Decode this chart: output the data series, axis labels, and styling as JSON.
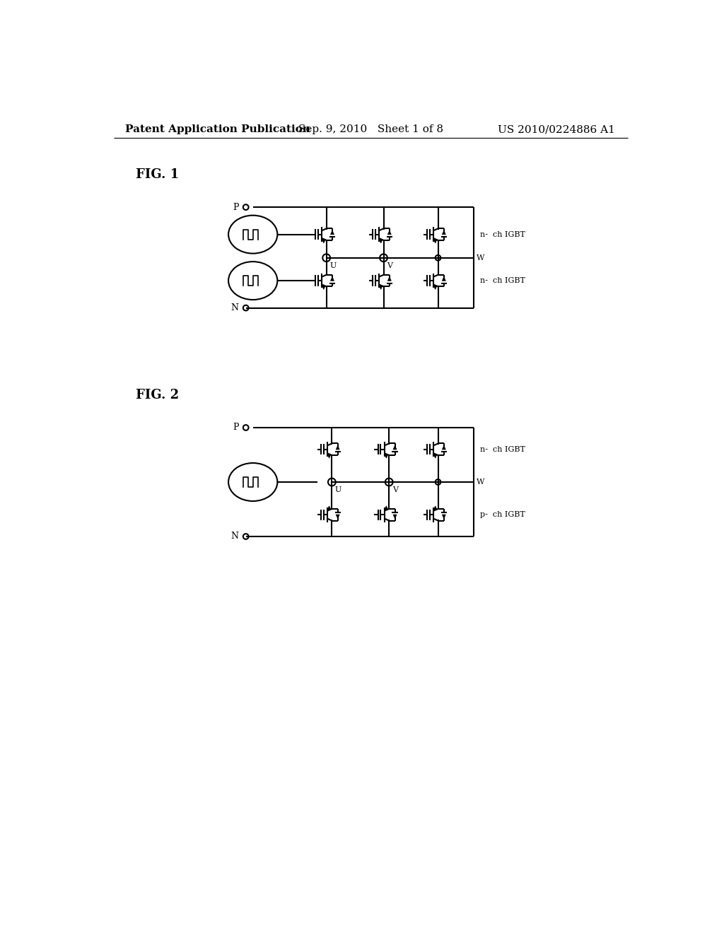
{
  "title_left": "Patent Application Publication",
  "title_mid": "Sep. 9, 2010   Sheet 1 of 8",
  "title_right": "US 2010/0224886 A1",
  "fig1_label": "FIG. 1",
  "fig2_label": "FIG. 2",
  "label_n_ch_igbt": "n-  ch IGBT",
  "label_p_ch_igbt": "p-  ch IGBT",
  "label_P": "P",
  "label_N": "N",
  "label_U": "U",
  "label_V": "V",
  "label_W": "W",
  "bg_color": "#ffffff",
  "line_color": "#000000",
  "font_size_header": 11,
  "font_size_fig": 13,
  "font_size_label": 9
}
